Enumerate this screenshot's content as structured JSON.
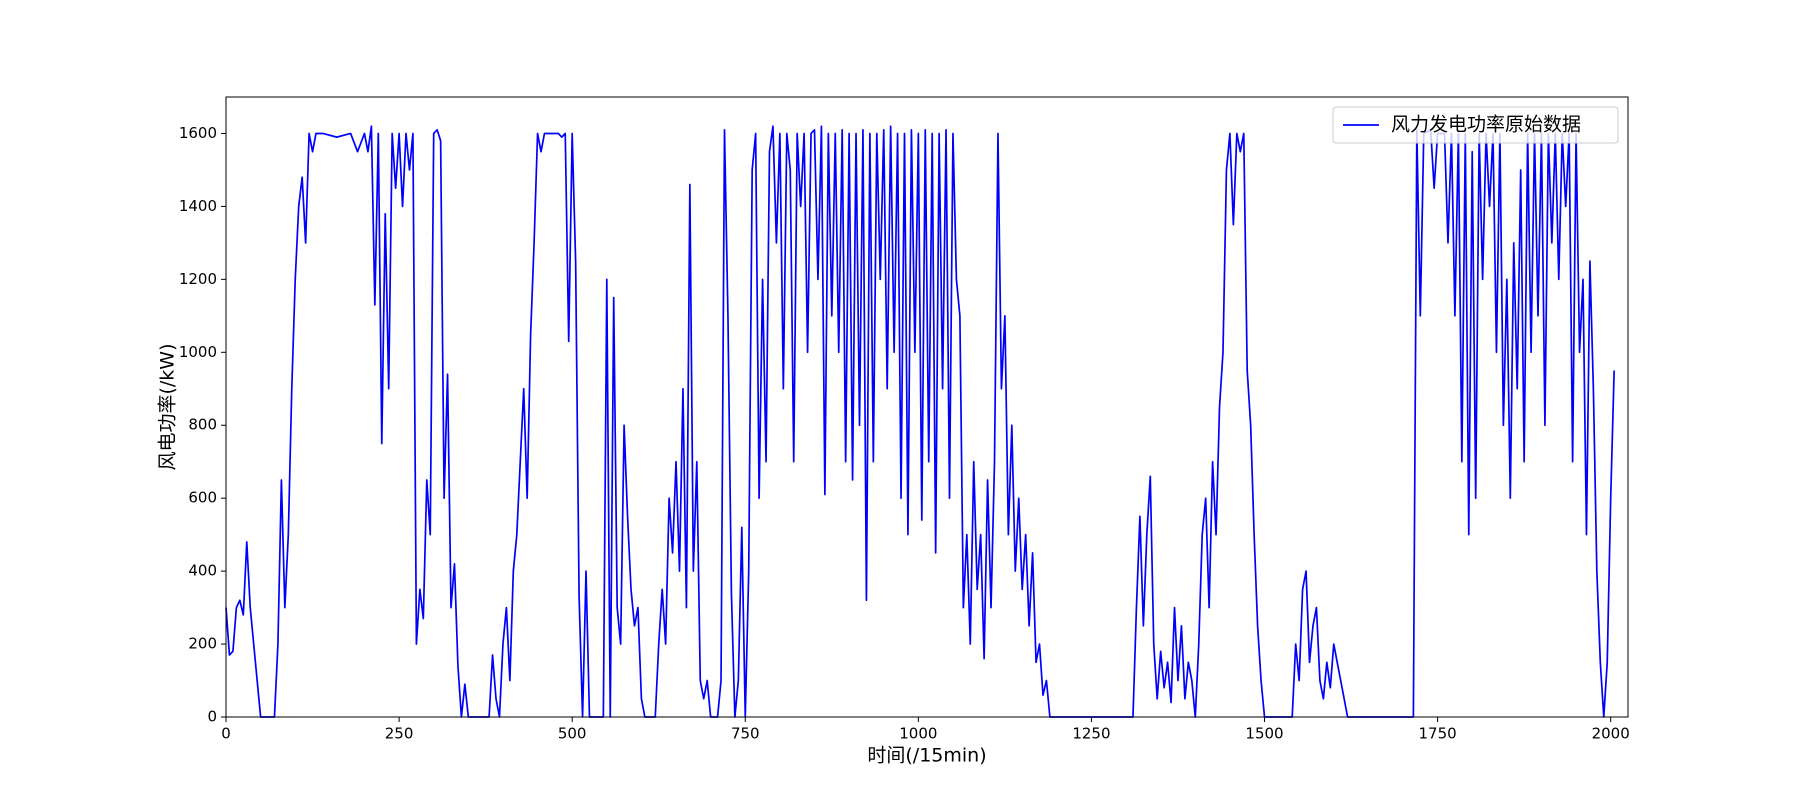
{
  "chart_data": {
    "type": "line",
    "x_label": "时间(/15min)",
    "y_label": "风电功率(/kW)",
    "xlim": [
      0,
      2025
    ],
    "ylim": [
      0,
      1700
    ],
    "xticks": [
      0,
      250,
      500,
      750,
      1000,
      1250,
      1500,
      1750,
      2000
    ],
    "yticks": [
      0,
      200,
      400,
      600,
      800,
      1000,
      1200,
      1400,
      1600
    ],
    "legend": "upper right",
    "x": [
      0,
      5,
      10,
      15,
      20,
      25,
      30,
      35,
      40,
      45,
      50,
      70,
      75,
      80,
      85,
      90,
      95,
      100,
      105,
      110,
      115,
      120,
      125,
      130,
      140,
      160,
      180,
      190,
      200,
      205,
      210,
      215,
      220,
      225,
      230,
      235,
      240,
      245,
      250,
      255,
      260,
      265,
      270,
      275,
      280,
      285,
      290,
      295,
      300,
      305,
      310,
      315,
      320,
      325,
      330,
      335,
      340,
      345,
      350,
      380,
      385,
      390,
      395,
      400,
      405,
      410,
      415,
      420,
      425,
      430,
      435,
      440,
      445,
      450,
      455,
      460,
      470,
      480,
      485,
      490,
      495,
      500,
      505,
      510,
      515,
      520,
      525,
      545,
      550,
      555,
      560,
      565,
      570,
      575,
      580,
      585,
      590,
      595,
      600,
      605,
      620,
      625,
      630,
      635,
      640,
      645,
      650,
      655,
      660,
      665,
      670,
      675,
      680,
      685,
      690,
      695,
      700,
      710,
      715,
      720,
      725,
      730,
      735,
      740,
      745,
      750,
      755,
      760,
      765,
      770,
      775,
      780,
      785,
      790,
      795,
      800,
      805,
      810,
      815,
      820,
      825,
      830,
      835,
      840,
      845,
      850,
      855,
      860,
      865,
      870,
      875,
      880,
      885,
      890,
      895,
      900,
      905,
      910,
      915,
      920,
      925,
      930,
      935,
      940,
      945,
      950,
      955,
      960,
      965,
      970,
      975,
      980,
      985,
      990,
      995,
      1000,
      1005,
      1010,
      1015,
      1020,
      1025,
      1030,
      1035,
      1040,
      1045,
      1050,
      1055,
      1060,
      1065,
      1070,
      1075,
      1080,
      1085,
      1090,
      1095,
      1100,
      1105,
      1110,
      1115,
      1120,
      1125,
      1130,
      1135,
      1140,
      1145,
      1150,
      1155,
      1160,
      1165,
      1170,
      1175,
      1180,
      1185,
      1190,
      1310,
      1315,
      1320,
      1325,
      1330,
      1335,
      1340,
      1345,
      1350,
      1355,
      1360,
      1365,
      1370,
      1375,
      1380,
      1385,
      1390,
      1395,
      1400,
      1405,
      1410,
      1415,
      1420,
      1425,
      1430,
      1435,
      1440,
      1445,
      1450,
      1455,
      1460,
      1465,
      1470,
      1475,
      1480,
      1485,
      1490,
      1495,
      1500,
      1540,
      1545,
      1550,
      1555,
      1560,
      1565,
      1570,
      1575,
      1580,
      1585,
      1590,
      1595,
      1600,
      1605,
      1610,
      1615,
      1620,
      1715,
      1720,
      1725,
      1730,
      1740,
      1745,
      1750,
      1760,
      1765,
      1770,
      1775,
      1780,
      1785,
      1790,
      1795,
      1800,
      1805,
      1810,
      1815,
      1820,
      1825,
      1830,
      1835,
      1840,
      1845,
      1850,
      1855,
      1860,
      1865,
      1870,
      1875,
      1880,
      1885,
      1890,
      1895,
      1900,
      1905,
      1910,
      1915,
      1920,
      1925,
      1930,
      1935,
      1940,
      1945,
      1950,
      1955,
      1960,
      1965,
      1970,
      1975,
      1980,
      1985,
      1990,
      1995,
      2000,
      2005
    ],
    "series": [
      {
        "name": "风力发电功率原始数据",
        "color": "#0000ff",
        "values": [
          300,
          170,
          180,
          300,
          320,
          280,
          480,
          300,
          200,
          100,
          0,
          0,
          200,
          650,
          300,
          500,
          900,
          1200,
          1400,
          1480,
          1300,
          1600,
          1550,
          1600,
          1600,
          1590,
          1600,
          1550,
          1600,
          1550,
          1620,
          1130,
          1600,
          750,
          1380,
          900,
          1600,
          1450,
          1600,
          1400,
          1600,
          1500,
          1600,
          200,
          350,
          270,
          650,
          500,
          1600,
          1610,
          1580,
          600,
          940,
          300,
          420,
          140,
          0,
          90,
          0,
          0,
          170,
          50,
          0,
          200,
          300,
          100,
          400,
          500,
          700,
          900,
          600,
          1050,
          1300,
          1600,
          1550,
          1600,
          1600,
          1600,
          1590,
          1600,
          1030,
          1600,
          1250,
          330,
          0,
          400,
          0,
          0,
          1200,
          0,
          1150,
          300,
          200,
          800,
          550,
          350,
          250,
          300,
          50,
          0,
          0,
          200,
          350,
          200,
          600,
          450,
          700,
          400,
          900,
          300,
          1460,
          400,
          700,
          100,
          50,
          100,
          0,
          0,
          100,
          1610,
          1100,
          340,
          0,
          100,
          520,
          0,
          400,
          1500,
          1600,
          600,
          1200,
          700,
          1550,
          1620,
          1300,
          1600,
          900,
          1600,
          1500,
          700,
          1600,
          1400,
          1600,
          1000,
          1600,
          1610,
          1200,
          1620,
          610,
          1600,
          1100,
          1600,
          1000,
          1610,
          700,
          1600,
          650,
          1600,
          800,
          1610,
          320,
          1600,
          700,
          1600,
          1200,
          1610,
          900,
          1620,
          1000,
          1600,
          600,
          1600,
          500,
          1610,
          1000,
          1600,
          540,
          1610,
          700,
          1600,
          450,
          1600,
          900,
          1610,
          600,
          1600,
          1200,
          1100,
          300,
          500,
          200,
          700,
          350,
          500,
          160,
          650,
          300,
          700,
          1600,
          900,
          1100,
          500,
          800,
          400,
          600,
          350,
          500,
          250,
          450,
          150,
          200,
          60,
          100,
          0,
          0,
          300,
          550,
          250,
          500,
          660,
          200,
          50,
          180,
          80,
          150,
          40,
          300,
          100,
          250,
          50,
          150,
          100,
          0,
          200,
          500,
          600,
          300,
          700,
          500,
          850,
          1000,
          1500,
          1600,
          1350,
          1600,
          1550,
          1600,
          950,
          800,
          500,
          250,
          100,
          0,
          0,
          200,
          100,
          350,
          400,
          150,
          250,
          300,
          100,
          50,
          150,
          80,
          200,
          150,
          100,
          50,
          0,
          0,
          1610,
          1100,
          1600,
          1610,
          1450,
          1600,
          1600,
          1300,
          1600,
          1100,
          1600,
          700,
          1600,
          500,
          1550,
          600,
          1600,
          1200,
          1600,
          1400,
          1600,
          1000,
          1600,
          800,
          1200,
          600,
          1300,
          900,
          1500,
          700,
          1600,
          1000,
          1600,
          1100,
          1600,
          800,
          1600,
          1300,
          1600,
          1200,
          1600,
          1400,
          1600,
          700,
          1600,
          1000,
          1200,
          500,
          1250,
          900,
          400,
          150,
          0,
          150,
          600,
          950
        ]
      }
    ]
  }
}
